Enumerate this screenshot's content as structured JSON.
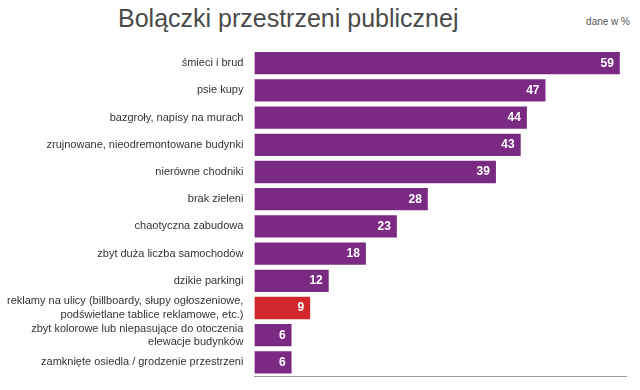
{
  "chart_data": {
    "type": "bar",
    "title": "Bolączki przestrzeni publicznej",
    "subtitle": "dane w %",
    "orientation": "horizontal",
    "categories": [
      "śmieci i brud",
      "psie kupy",
      "bazgroły, napisy na murach",
      "zrujnowane, nieodremontowane budynki",
      "nierówne chodniki",
      "brak zieleni",
      "chaotyczna zabudowa",
      "zbyt duża liczba samochodów",
      "dzikie parkingi",
      "reklamy na ulicy (billboardy, słupy ogłoszeniowe, podświetlane tablice reklamowe, etc.)",
      "zbyt kolorowe lub niepasujące do otoczenia elewacje budynków",
      "zamknięte osiedla / grodzenie przestrzeni"
    ],
    "values": [
      59,
      47,
      44,
      43,
      39,
      28,
      23,
      18,
      12,
      9,
      6,
      6
    ],
    "colors": [
      "#7b2a83",
      "#7b2a83",
      "#7b2a83",
      "#7b2a83",
      "#7b2a83",
      "#7b2a83",
      "#7b2a83",
      "#7b2a83",
      "#7b2a83",
      "#d1262c",
      "#7b2a83",
      "#7b2a83"
    ],
    "xlim": [
      0,
      60
    ],
    "grid": false,
    "data_labels": true,
    "tick_labels": "y"
  }
}
